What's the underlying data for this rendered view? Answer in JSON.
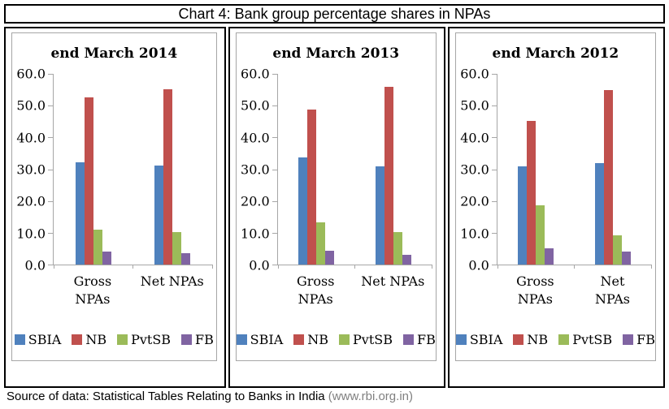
{
  "title": "Chart 4: Bank group percentage shares in NPAs",
  "footer": {
    "source_label": "Source of data: Statistical Tables Relating to Banks in India ",
    "source_link": "(www.rbi.org.in)"
  },
  "colors": {
    "axis": "#a6a6a6",
    "SBIA": "#4f81bd",
    "NB": "#c0504d",
    "PvtSB": "#9bbb59",
    "FB": "#8064a2"
  },
  "chart_data": [
    {
      "type": "bar",
      "title": "end March 2014",
      "categories": [
        "Gross\nNPAs",
        "Net NPAs"
      ],
      "series": [
        {
          "name": "SBIA",
          "color": "#4f81bd",
          "values": [
            32.3,
            31.2
          ]
        },
        {
          "name": "NB",
          "color": "#c0504d",
          "values": [
            52.7,
            55.2
          ]
        },
        {
          "name": "PvtSB",
          "color": "#9bbb59",
          "values": [
            10.9,
            10.1
          ]
        },
        {
          "name": "FB",
          "color": "#8064a2",
          "values": [
            4.1,
            3.6
          ]
        }
      ],
      "ylim": [
        0,
        60
      ],
      "ytick_step": 10,
      "yticks": [
        "60.0",
        "50.0",
        "40.0",
        "30.0",
        "20.0",
        "10.0",
        "0.0"
      ],
      "grid": false,
      "legend_position": "bottom"
    },
    {
      "type": "bar",
      "title": "end March 2013",
      "categories": [
        "Gross\nNPAs",
        "Net NPAs"
      ],
      "series": [
        {
          "name": "SBIA",
          "color": "#4f81bd",
          "values": [
            33.7,
            30.8
          ]
        },
        {
          "name": "NB",
          "color": "#c0504d",
          "values": [
            48.8,
            55.9
          ]
        },
        {
          "name": "PvtSB",
          "color": "#9bbb59",
          "values": [
            13.2,
            10.3
          ]
        },
        {
          "name": "FB",
          "color": "#8064a2",
          "values": [
            4.3,
            3.0
          ]
        }
      ],
      "ylim": [
        0,
        60
      ],
      "ytick_step": 10,
      "yticks": [
        "60.0",
        "50.0",
        "40.0",
        "30.0",
        "20.0",
        "10.0",
        "0.0"
      ],
      "grid": false,
      "legend_position": "bottom"
    },
    {
      "type": "bar",
      "title": "end March 2012",
      "categories": [
        "Gross\nNPAs",
        "Net\nNPAs"
      ],
      "series": [
        {
          "name": "SBIA",
          "color": "#4f81bd",
          "values": [
            31.0,
            31.8
          ]
        },
        {
          "name": "NB",
          "color": "#c0504d",
          "values": [
            45.3,
            54.8
          ]
        },
        {
          "name": "PvtSB",
          "color": "#9bbb59",
          "values": [
            18.6,
            9.2
          ]
        },
        {
          "name": "FB",
          "color": "#8064a2",
          "values": [
            5.1,
            4.1
          ]
        }
      ],
      "ylim": [
        0,
        60
      ],
      "ytick_step": 10,
      "yticks": [
        "60.0",
        "50.0",
        "40.0",
        "30.0",
        "20.0",
        "10.0",
        "0.0"
      ],
      "grid": false,
      "legend_position": "bottom"
    }
  ]
}
